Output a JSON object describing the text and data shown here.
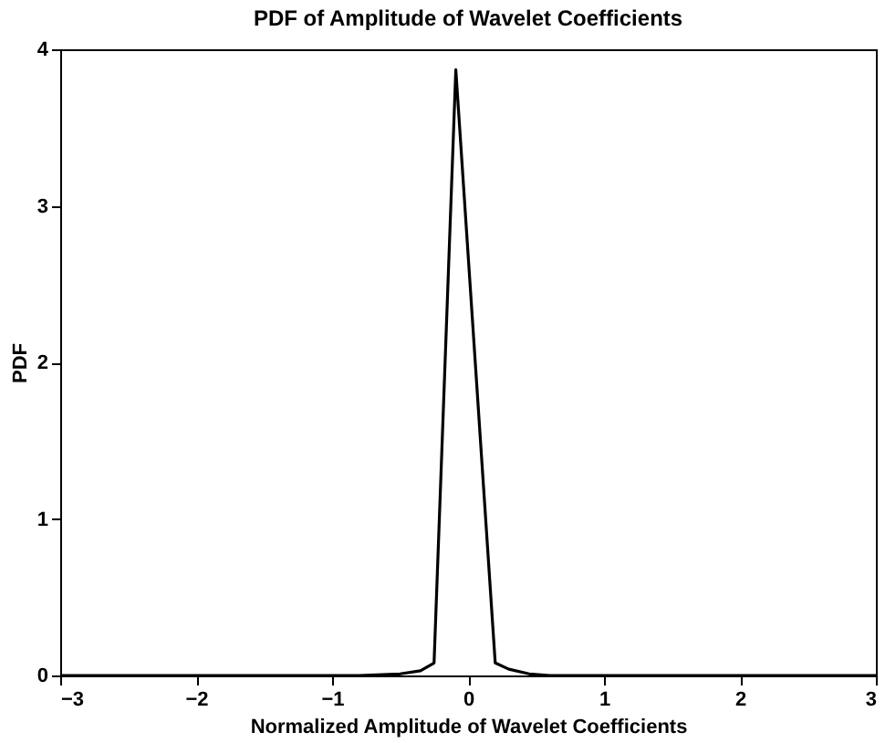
{
  "chart_data": {
    "type": "line",
    "title": "PDF of Amplitude of Wavelet Coefficients",
    "xlabel": "Normalized Amplitude of Wavelet Coefficients",
    "ylabel": "PDF",
    "series": [
      {
        "color": "#000000",
        "x": [
          -3,
          -0.8,
          -0.5,
          -0.35,
          -0.25,
          -0.09,
          0.2,
          0.3,
          0.45,
          0.6,
          3
        ],
        "values": [
          0,
          0.0,
          0.01,
          0.03,
          0.08,
          3.87,
          0.08,
          0.04,
          0.01,
          0.0,
          0
        ]
      }
    ],
    "xlim": [
      -3,
      3
    ],
    "xticks": [
      -3,
      -2,
      -1,
      0,
      1,
      2,
      3
    ],
    "ylim": [
      0,
      4
    ],
    "yticks": [
      0,
      1,
      2,
      3,
      4
    ],
    "grid": false,
    "marker": "none",
    "line_style": "solid"
  }
}
